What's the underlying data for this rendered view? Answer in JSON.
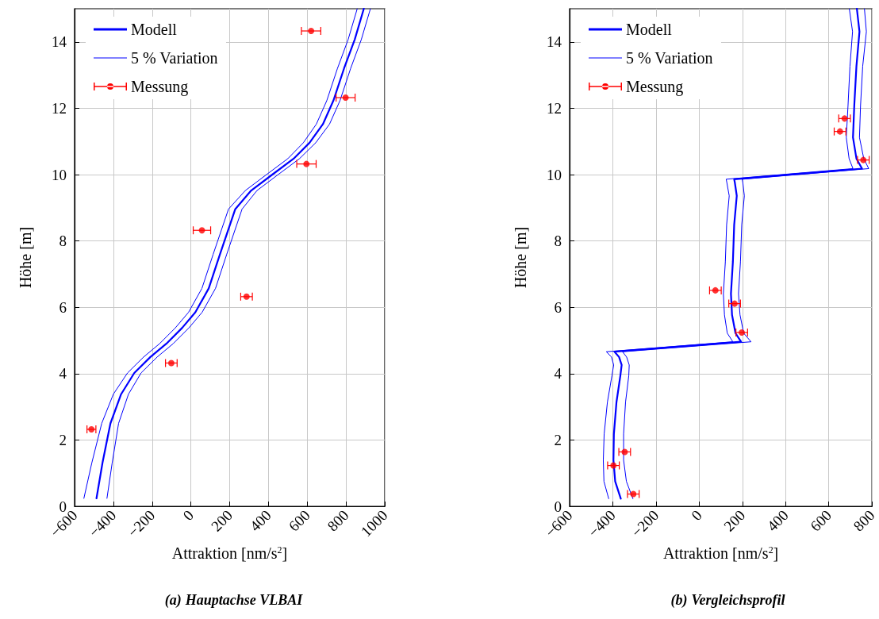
{
  "chart_data": [
    {
      "type": "line",
      "title": "(a) Hauptachse VLBAI",
      "xlabel": "Attraktion [nm/s$^{2}$]",
      "ylabel": "Höhe [m]",
      "xlim": [
        -600,
        1000
      ],
      "xticks": [
        {
          "value": -600,
          "label": "−600"
        },
        {
          "value": -400,
          "label": "−400"
        },
        {
          "value": -200,
          "label": "−200"
        },
        0,
        200,
        400,
        600,
        800,
        1000
      ],
      "ylim": [
        0,
        15
      ],
      "yticks": [
        0,
        2,
        4,
        6,
        8,
        10,
        12,
        14
      ],
      "grid": true,
      "legend": "top left",
      "series": [
        {
          "name": "Modell",
          "type": "line",
          "color": "#0000ff",
          "line_style": "solid",
          "x": [
            -487,
            -456,
            -415,
            -360,
            -292,
            -209,
            -127,
            -45,
            23,
            92,
            150,
            229,
            311,
            420,
            530,
            612,
            681,
            735,
            790,
            845,
            892
          ],
          "values": [
            0.24,
            1.31,
            2.5,
            3.38,
            4.02,
            4.5,
            4.9,
            5.38,
            5.85,
            6.57,
            7.6,
            8.96,
            9.52,
            10.0,
            10.48,
            10.96,
            11.52,
            12.23,
            13.2,
            14.07,
            15.0
          ]
        },
        {
          "name": "5 % Variation",
          "type": "line",
          "color": "#0000ff",
          "line_style": "solid",
          "x": [
            -552,
            -511,
            -460,
            -400,
            -327,
            -244,
            -162,
            -80,
            -12,
            57,
            115,
            194,
            281,
            390,
            500,
            580,
            647,
            701,
            756,
            811,
            858
          ],
          "values": [
            0.24,
            1.31,
            2.5,
            3.38,
            4.02,
            4.5,
            4.9,
            5.38,
            5.85,
            6.57,
            7.6,
            8.96,
            9.52,
            10.0,
            10.48,
            10.96,
            11.52,
            12.23,
            13.2,
            14.07,
            15.0
          ]
        },
        {
          "type": "line",
          "color": "#0000ff",
          "line_style": "solid",
          "x": [
            -433,
            -406,
            -373,
            -322,
            -257,
            -174,
            -92,
            -10,
            58,
            127,
            185,
            264,
            341,
            450,
            560,
            644,
            715,
            769,
            824,
            879,
            926
          ],
          "values": [
            0.24,
            1.31,
            2.5,
            3.38,
            4.02,
            4.5,
            4.9,
            5.38,
            5.85,
            6.57,
            7.6,
            8.96,
            9.52,
            10.0,
            10.48,
            10.96,
            11.52,
            12.23,
            13.2,
            14.07,
            15.0
          ]
        },
        {
          "name": "Messung",
          "type": "scatter",
          "color": "#ff0000",
          "marker": "circle",
          "x": [
            -513,
            -101,
            287,
            57,
            596,
            798,
            620
          ],
          "values": [
            2.32,
            4.32,
            6.32,
            8.32,
            10.32,
            12.32,
            14.33
          ],
          "xerrors": [
            23,
            30,
            30,
            45,
            50,
            49,
            50
          ]
        }
      ]
    },
    {
      "type": "line",
      "title": "(b) Vergleichsprofil",
      "xlabel": "Attraktion [nm/s$^{2}$]",
      "ylabel": "Höhe [m]",
      "xlim": [
        -600,
        800
      ],
      "xticks": [
        {
          "value": -600,
          "label": "−600"
        },
        {
          "value": -400,
          "label": "−400"
        },
        {
          "value": -200,
          "label": "−200"
        },
        0,
        200,
        400,
        600,
        800
      ],
      "ylim": [
        0,
        15
      ],
      "yticks": [
        0,
        2,
        4,
        6,
        8,
        10,
        12,
        14
      ],
      "grid": true,
      "legend": "top left",
      "series": [
        {
          "name": "Modell",
          "type": "line",
          "color": "#0000ff",
          "line_style": "solid",
          "x": [
            -363,
            -389,
            -397,
            -395,
            -383,
            -365,
            -359,
            -371,
            -392,
            194,
            168,
            152,
            147,
            156,
            162,
            174,
            165,
            162,
            754,
            728,
            712,
            718,
            728,
            742,
            730
          ],
          "values": [
            0.23,
            0.75,
            1.39,
            2.18,
            3.14,
            3.94,
            4.26,
            4.5,
            4.66,
            4.96,
            5.22,
            5.77,
            6.41,
            7.37,
            8.49,
            9.36,
            9.76,
            9.86,
            10.18,
            10.48,
            11.12,
            12.08,
            13.27,
            14.31,
            15.0
          ]
        },
        {
          "name": "5 % Variation",
          "type": "line",
          "color": "#0000ff",
          "line_style": "solid",
          "x": [
            -419,
            -441,
            -444,
            -440,
            -425,
            -404,
            -396,
            -406,
            -430,
            156,
            130,
            117,
            112,
            121,
            127,
            139,
            128,
            125,
            712,
            694,
            681,
            689,
            698,
            710,
            695
          ],
          "values": [
            0.23,
            0.75,
            1.39,
            2.18,
            3.14,
            3.94,
            4.26,
            4.5,
            4.66,
            4.96,
            5.22,
            5.77,
            6.41,
            7.37,
            8.49,
            9.36,
            9.76,
            9.86,
            10.18,
            10.48,
            11.12,
            12.08,
            13.27,
            14.31,
            15.0
          ]
        },
        {
          "type": "line",
          "color": "#0000ff",
          "line_style": "solid",
          "x": [
            -307,
            -337,
            -350,
            -350,
            -341,
            -326,
            -324,
            -336,
            -355,
            240,
            206,
            189,
            182,
            191,
            197,
            209,
            202,
            199,
            785,
            762,
            742,
            747,
            757,
            774,
            765
          ],
          "values": [
            0.23,
            0.75,
            1.39,
            2.18,
            3.14,
            3.94,
            4.26,
            4.5,
            4.66,
            4.96,
            5.22,
            5.77,
            6.41,
            7.37,
            8.49,
            9.36,
            9.76,
            9.86,
            10.18,
            10.48,
            11.12,
            12.08,
            13.27,
            14.31,
            15.0
          ]
        },
        {
          "name": "Messung",
          "type": "scatter",
          "color": "#ff0000",
          "marker": "circle",
          "x": [
            -305,
            -397,
            -345,
            197,
            164,
            75,
            760,
            652,
            673
          ],
          "values": [
            0.37,
            1.23,
            1.64,
            5.24,
            6.11,
            6.51,
            10.44,
            11.3,
            11.69
          ],
          "xerrors": [
            27,
            27,
            27,
            27,
            27,
            27,
            27,
            27,
            27
          ]
        }
      ]
    }
  ]
}
